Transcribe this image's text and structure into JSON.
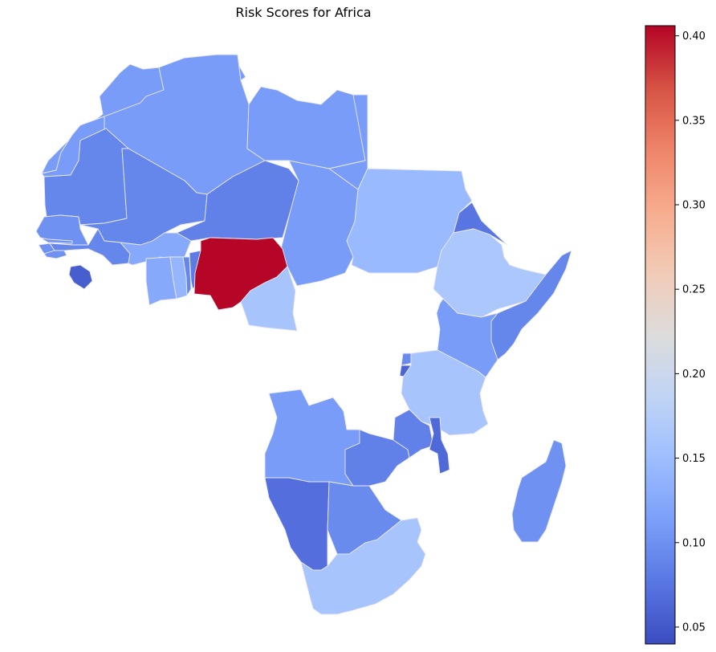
{
  "title": "Risk Scores for Africa",
  "colormap": "coolwarm",
  "colorbar": {
    "min": 0.04,
    "max": 0.406,
    "ticks": [
      "0.05",
      "0.10",
      "0.15",
      "0.20",
      "0.25",
      "0.30",
      "0.35",
      "0.40"
    ],
    "tick_values": [
      0.05,
      0.1,
      0.15,
      0.2,
      0.25,
      0.3,
      0.35,
      0.4
    ],
    "colors": [
      "#3b4cc0",
      "#5977e3",
      "#7b9ff9",
      "#9ebeff",
      "#c0d4f5",
      "#dddcdc",
      "#f2cbb7",
      "#f7ac8e",
      "#ee8468",
      "#d65244",
      "#b40426"
    ]
  },
  "chart_data": {
    "type": "choropleth",
    "title": "Risk Scores for Africa",
    "value_range": [
      0.04,
      0.406
    ],
    "regions": [
      {
        "name": "Morocco",
        "value": 0.11
      },
      {
        "name": "Western Sahara",
        "value": 0.11
      },
      {
        "name": "Algeria",
        "value": 0.11
      },
      {
        "name": "Tunisia",
        "value": 0.11
      },
      {
        "name": "Libya",
        "value": 0.11
      },
      {
        "name": "Egypt",
        "value": 0.11
      },
      {
        "name": "Mauritania",
        "value": 0.09
      },
      {
        "name": "Mali",
        "value": 0.09
      },
      {
        "name": "Niger",
        "value": 0.085
      },
      {
        "name": "Chad",
        "value": 0.11
      },
      {
        "name": "Sudan",
        "value": 0.145
      },
      {
        "name": "Senegal",
        "value": 0.1
      },
      {
        "name": "Gambia",
        "value": 0.1
      },
      {
        "name": "Guinea-Bissau",
        "value": 0.1
      },
      {
        "name": "Guinea",
        "value": 0.09
      },
      {
        "name": "Sierra Leone",
        "value": 0.1
      },
      {
        "name": "Liberia",
        "value": 0.055
      },
      {
        "name": "Burkina Faso",
        "value": 0.125
      },
      {
        "name": "Ivory Coast",
        "value": 0.125
      },
      {
        "name": "Ghana",
        "value": 0.14
      },
      {
        "name": "Togo",
        "value": 0.09
      },
      {
        "name": "Benin",
        "value": 0.08
      },
      {
        "name": "Nigeria",
        "value": 0.405
      },
      {
        "name": "Cameroon",
        "value": 0.16
      },
      {
        "name": "Eritrea",
        "value": 0.075
      },
      {
        "name": "Ethiopia",
        "value": 0.165
      },
      {
        "name": "Somalia",
        "value": 0.09
      },
      {
        "name": "Kenya",
        "value": 0.11
      },
      {
        "name": "Rwanda",
        "value": 0.095
      },
      {
        "name": "Burundi",
        "value": 0.06
      },
      {
        "name": "Tanzania",
        "value": 0.16
      },
      {
        "name": "Angola",
        "value": 0.11
      },
      {
        "name": "Zambia",
        "value": 0.085
      },
      {
        "name": "Malawi",
        "value": 0.085
      },
      {
        "name": "Mozambique",
        "value": 0.065
      },
      {
        "name": "Namibia",
        "value": 0.07
      },
      {
        "name": "Botswana",
        "value": 0.095
      },
      {
        "name": "South Africa",
        "value": 0.16
      },
      {
        "name": "Madagascar",
        "value": 0.1
      }
    ]
  }
}
